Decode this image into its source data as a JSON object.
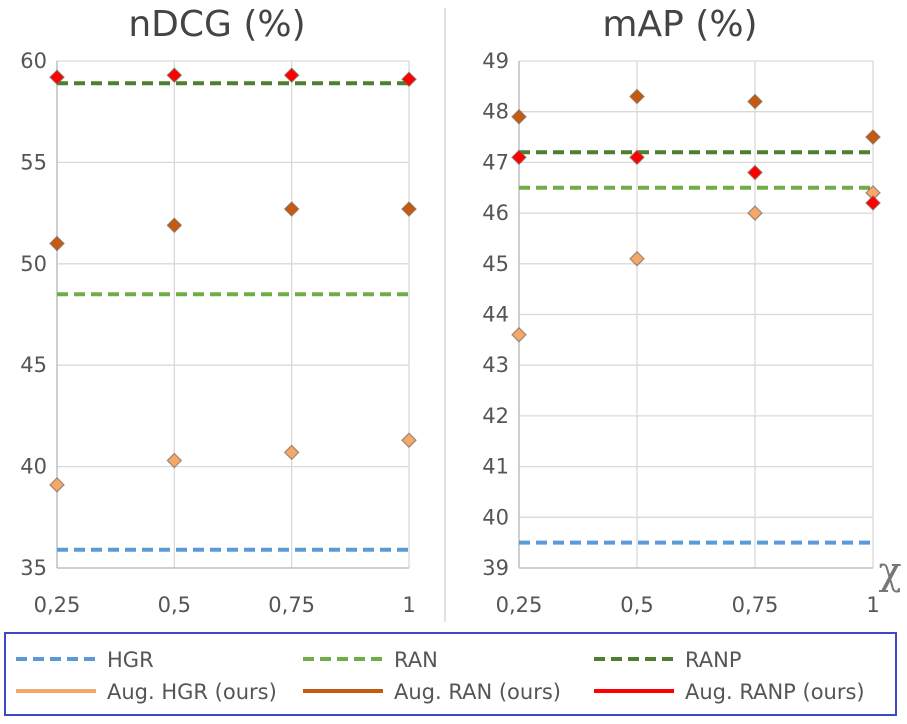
{
  "chart_data": [
    {
      "type": "scatter",
      "title": "nDCG (%)",
      "x": [
        0.25,
        0.5,
        0.75,
        1
      ],
      "x_tick_labels": [
        "0,25",
        "0,5",
        "0,75",
        "1"
      ],
      "xlim": [
        0.25,
        1
      ],
      "ylim": [
        35,
        60
      ],
      "y_ticks": [
        35,
        40,
        45,
        50,
        55,
        60
      ],
      "y_tick_labels": [
        "35",
        "40",
        "45",
        "50",
        "55",
        "60"
      ],
      "grid": true,
      "baselines": [
        {
          "name": "HGR",
          "value": 35.9,
          "color": "#5B9BD5"
        },
        {
          "name": "RAN",
          "value": 48.5,
          "color": "#70AD47"
        },
        {
          "name": "RANP",
          "value": 58.9,
          "color": "#4E7F2E"
        }
      ],
      "series": [
        {
          "name": "Aug. HGR (ours)",
          "values": [
            39.1,
            40.3,
            40.7,
            41.3
          ],
          "color": "#F4A96A"
        },
        {
          "name": "Aug. RAN (ours)",
          "values": [
            51.0,
            51.9,
            52.7,
            52.7
          ],
          "color": "#C55A11"
        },
        {
          "name": "Aug. RANP (ours)",
          "values": [
            59.2,
            59.3,
            59.3,
            59.1
          ],
          "color": "#FF0000"
        }
      ]
    },
    {
      "type": "scatter",
      "title": "mAP (%)",
      "x": [
        0.25,
        0.5,
        0.75,
        1
      ],
      "x_tick_labels": [
        "0,25",
        "0,5",
        "0,75",
        "1"
      ],
      "xlabel": "χ",
      "xlim": [
        0.25,
        1
      ],
      "ylim": [
        39,
        49
      ],
      "y_ticks": [
        39,
        40,
        41,
        42,
        43,
        44,
        45,
        46,
        47,
        48,
        49
      ],
      "y_tick_labels": [
        "39",
        "40",
        "41",
        "42",
        "43",
        "44",
        "45",
        "46",
        "47",
        "48",
        "49"
      ],
      "grid": true,
      "baselines": [
        {
          "name": "HGR",
          "value": 39.5,
          "color": "#5B9BD5"
        },
        {
          "name": "RAN",
          "value": 46.5,
          "color": "#70AD47"
        },
        {
          "name": "RANP",
          "value": 47.2,
          "color": "#4E7F2E"
        }
      ],
      "series": [
        {
          "name": "Aug. HGR (ours)",
          "values": [
            43.6,
            45.1,
            46.0,
            46.4
          ],
          "color": "#F4A96A"
        },
        {
          "name": "Aug. RAN (ours)",
          "values": [
            47.9,
            48.3,
            48.2,
            47.5
          ],
          "color": "#C55A11"
        },
        {
          "name": "Aug. RANP (ours)",
          "values": [
            47.1,
            47.1,
            46.8,
            46.2
          ],
          "color": "#FF0000"
        }
      ]
    }
  ],
  "legend": {
    "position": "bottom",
    "entries": [
      {
        "name": "HGR",
        "style": "dashed",
        "color": "#5B9BD5"
      },
      {
        "name": "RAN",
        "style": "dashed",
        "color": "#70AD47"
      },
      {
        "name": "RANP",
        "style": "dashed",
        "color": "#4E7F2E"
      },
      {
        "name": "Aug. HGR (ours)",
        "style": "solid",
        "color": "#F4A96A"
      },
      {
        "name": "Aug. RAN (ours)",
        "style": "solid",
        "color": "#C55A11"
      },
      {
        "name": "Aug. RANP (ours)",
        "style": "solid",
        "color": "#FF0000"
      }
    ]
  },
  "colors": {
    "grid": "#D9D9D9",
    "axis": "#BFBFBF",
    "legend_border": "#3F48CC"
  }
}
